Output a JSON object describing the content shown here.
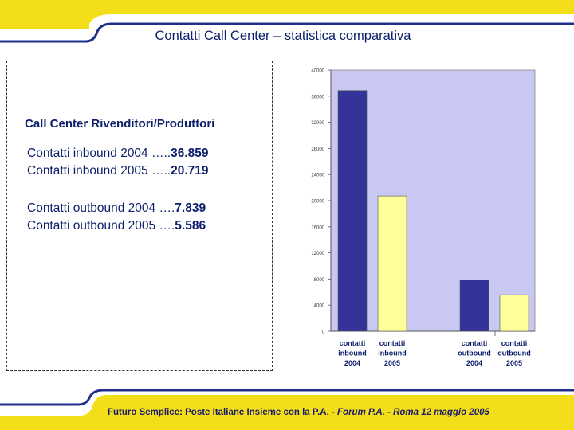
{
  "slide": {
    "title": "Contatti Call Center – statistica comparativa",
    "subtitle": "Call Center Rivenditori/Produttori",
    "stats": [
      {
        "label": "Contatti inbound 2004 …..",
        "value": "36.859"
      },
      {
        "label": "Contatti inbound 2005 …..",
        "value": "20.719"
      },
      {
        "label": "Contatti outbound 2004 ….",
        "value": "7.839"
      },
      {
        "label": "Contatti outbound 2005 ….",
        "value": "5.586"
      }
    ],
    "footer_prefix": "Futuro Semplice: Poste Italiane Insieme con la P.A. - ",
    "footer_event": "Forum P.A. - Roma 12 maggio 2005"
  },
  "colors": {
    "frame_yellow": "#f2df1a",
    "frame_blue": "#1e2f8c",
    "plot_bg": "#c8c8f2",
    "series_2004": "#333399",
    "series_2005": "#ffff99",
    "text_navy": "#0d1f6b"
  },
  "chart_data": {
    "type": "bar",
    "categories": [
      [
        "contatti",
        "inbound",
        "2004"
      ],
      [
        "contatti",
        "inbound",
        "2005"
      ],
      [
        "contatti",
        "outbound",
        "2004"
      ],
      [
        "contatti",
        "outbound",
        "2005"
      ]
    ],
    "values": [
      36859,
      20719,
      7839,
      5586
    ],
    "ylim": [
      0,
      40000
    ],
    "yticks": [
      "0",
      "4000",
      "8000",
      "12000",
      "16000",
      "20000",
      "24000",
      "28000",
      "32000",
      "36000",
      "40000"
    ],
    "grid": false,
    "legend": "none"
  }
}
